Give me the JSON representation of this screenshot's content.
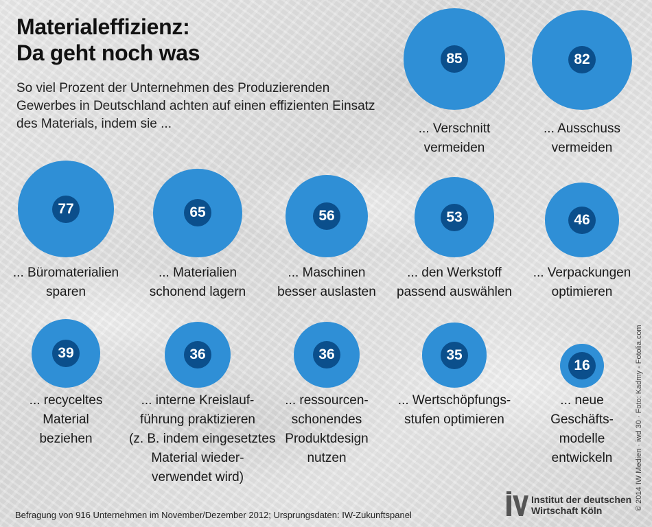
{
  "title_line1": "Materialeffizienz:",
  "title_line2": "Da geht noch was",
  "subtitle": "So viel Prozent der Unternehmen des Produzierenden Gewerbes in Deutschland achten auf einen effizienten Einsatz des Materials, indem sie ...",
  "source": "Befragung von 916 Unternehmen im November/Dezember 2012; Ursprungsdaten: IW-Zukunftspanel",
  "credit": "© 2014 IW Medien · iwd 30 · Foto: Kadmy - Fotolia.com",
  "logo": {
    "icon": "iw-logo-icon",
    "line1": "Institut der deutschen",
    "line2": "Wirtschaft Köln"
  },
  "colors": {
    "bubble": "#2f8fd6",
    "badge": "#0b4f8c"
  },
  "chart_data": {
    "type": "bubble",
    "unit": "Prozent",
    "items": [
      {
        "value": 85,
        "label": [
          "... Verschnitt",
          "vermeiden"
        ]
      },
      {
        "value": 82,
        "label": [
          "... Ausschuss",
          "vermeiden"
        ]
      },
      {
        "value": 77,
        "label": [
          "... Büromaterialien",
          "sparen"
        ]
      },
      {
        "value": 65,
        "label": [
          "... Materialien",
          "schonend lagern"
        ]
      },
      {
        "value": 56,
        "label": [
          "... Maschinen",
          "besser auslasten"
        ]
      },
      {
        "value": 53,
        "label": [
          "... den Werkstoff",
          "passend auswählen"
        ]
      },
      {
        "value": 46,
        "label": [
          "... Verpackungen",
          "optimieren"
        ]
      },
      {
        "value": 39,
        "label": [
          "... recyceltes",
          "Material",
          "beziehen"
        ]
      },
      {
        "value": 36,
        "label": [
          "... interne Kreislauf-",
          "führung praktizieren",
          "(z. B. indem eingesetztes",
          "Material wieder-",
          "verwendet wird)"
        ]
      },
      {
        "value": 36,
        "label": [
          "... ressourcen-",
          "schonendes",
          "Produktdesign",
          "nutzen"
        ]
      },
      {
        "value": 35,
        "label": [
          "... Wertschöpfungs-",
          "stufen optimieren"
        ]
      },
      {
        "value": 16,
        "label": [
          "... neue",
          "Geschäfts-",
          "modelle",
          "entwickeln"
        ]
      }
    ]
  }
}
